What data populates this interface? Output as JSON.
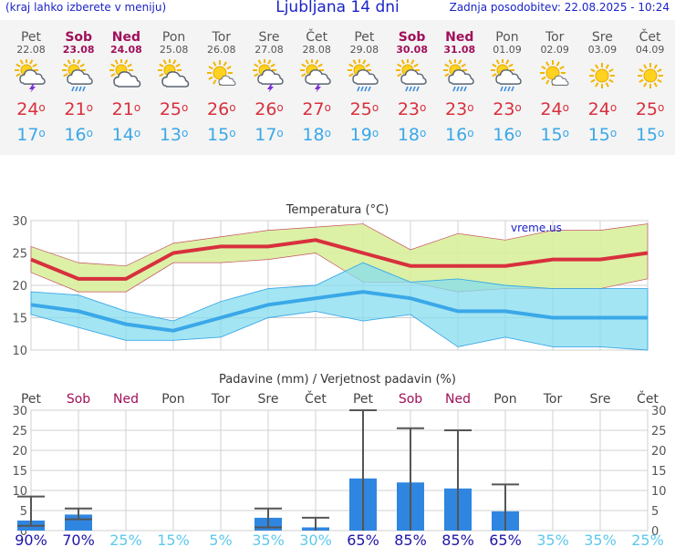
{
  "header": {
    "menu_hint": "(kraj lahko izberete v meniju)",
    "title": "Ljubljana 14 dni",
    "updated": "Zadnja posodobitev: 22.08.2025 - 10:24"
  },
  "colors": {
    "link": "#1a23c8",
    "weekend": "#a0105a",
    "tmax": "#d8303d",
    "tmin": "#3aa8e8",
    "bar": "#2f86e0"
  },
  "days": [
    {
      "name": "Pet",
      "date": "22.08",
      "weekend": false,
      "icon": "sun-cloud-storm-icon",
      "tmax": "24",
      "tmin": "17",
      "prob": "90%",
      "prob_class": "high"
    },
    {
      "name": "Sob",
      "date": "23.08",
      "weekend": true,
      "icon": "sun-cloud-rain-icon",
      "tmax": "21",
      "tmin": "16",
      "prob": "70%",
      "prob_class": "high"
    },
    {
      "name": "Ned",
      "date": "24.08",
      "weekend": true,
      "icon": "sun-cloud-icon",
      "tmax": "21",
      "tmin": "14",
      "prob": "25%",
      "prob_class": "low"
    },
    {
      "name": "Pon",
      "date": "25.08",
      "weekend": false,
      "icon": "sun-cloud-icon",
      "tmax": "25",
      "tmin": "13",
      "prob": "15%",
      "prob_class": "low"
    },
    {
      "name": "Tor",
      "date": "26.08",
      "weekend": false,
      "icon": "sun-small-cloud-icon",
      "tmax": "26",
      "tmin": "15",
      "prob": "5%",
      "prob_class": "low"
    },
    {
      "name": "Sre",
      "date": "27.08",
      "weekend": false,
      "icon": "sun-cloud-storm-icon",
      "tmax": "26",
      "tmin": "17",
      "prob": "35%",
      "prob_class": "low"
    },
    {
      "name": "Čet",
      "date": "28.08",
      "weekend": false,
      "icon": "sun-cloud-storm-icon",
      "tmax": "27",
      "tmin": "18",
      "prob": "30%",
      "prob_class": "low"
    },
    {
      "name": "Pet",
      "date": "29.08",
      "weekend": false,
      "icon": "sun-cloud-rain-icon",
      "tmax": "25",
      "tmin": "19",
      "prob": "65%",
      "prob_class": "high"
    },
    {
      "name": "Sob",
      "date": "30.08",
      "weekend": true,
      "icon": "sun-cloud-rain-icon",
      "tmax": "23",
      "tmin": "18",
      "prob": "85%",
      "prob_class": "high"
    },
    {
      "name": "Ned",
      "date": "31.08",
      "weekend": true,
      "icon": "sun-cloud-rain-icon",
      "tmax": "23",
      "tmin": "16",
      "prob": "85%",
      "prob_class": "high"
    },
    {
      "name": "Pon",
      "date": "01.09",
      "weekend": false,
      "icon": "sun-cloud-rain-icon",
      "tmax": "23",
      "tmin": "16",
      "prob": "65%",
      "prob_class": "high"
    },
    {
      "name": "Tor",
      "date": "02.09",
      "weekend": false,
      "icon": "sun-small-cloud-icon",
      "tmax": "24",
      "tmin": "15",
      "prob": "35%",
      "prob_class": "low"
    },
    {
      "name": "Sre",
      "date": "03.09",
      "weekend": false,
      "icon": "sun-icon",
      "tmax": "24",
      "tmin": "15",
      "prob": "35%",
      "prob_class": "low"
    },
    {
      "name": "Čet",
      "date": "04.09",
      "weekend": false,
      "icon": "sun-icon",
      "tmax": "25",
      "tmin": "15",
      "prob": "25%",
      "prob_class": "low"
    }
  ],
  "chart_data": [
    {
      "type": "line",
      "title": "Temperatura (°C)",
      "watermark": "vreme.us",
      "categories": [
        "22.08",
        "23.08",
        "24.08",
        "25.08",
        "26.08",
        "27.08",
        "28.08",
        "29.08",
        "30.08",
        "31.08",
        "01.09",
        "02.09",
        "03.09",
        "04.09"
      ],
      "ylim": [
        10,
        30
      ],
      "yticks": [
        10,
        15,
        20,
        25,
        30
      ],
      "grid": true,
      "series": [
        {
          "name": "tmax",
          "values": [
            24,
            21,
            21,
            25,
            26,
            26,
            27,
            25,
            23,
            23,
            23,
            24,
            24,
            25
          ],
          "band_low": [
            22,
            19,
            19,
            23.5,
            23.5,
            24,
            25,
            20.5,
            20.5,
            19,
            19.5,
            19.5,
            19.5,
            21
          ],
          "band_high": [
            26,
            23.5,
            23,
            26.5,
            27.5,
            28.5,
            29,
            29.5,
            25.5,
            28,
            27,
            28.5,
            28.5,
            29.5
          ]
        },
        {
          "name": "tmin",
          "values": [
            17,
            16,
            14,
            13,
            15,
            17,
            18,
            19,
            18,
            16,
            16,
            15,
            15,
            15
          ],
          "band_low": [
            15.5,
            13.5,
            11.5,
            11.5,
            12,
            15,
            16,
            14.5,
            15.5,
            10.5,
            12,
            10.5,
            10.5,
            10
          ],
          "band_high": [
            19,
            18.5,
            16,
            14.5,
            17.5,
            19.5,
            20,
            23.5,
            20.5,
            21,
            20,
            19.5,
            19.5,
            19.5
          ]
        }
      ]
    },
    {
      "type": "bar",
      "title": "Padavine (mm) / Verjetnost padavin (%)",
      "categories": [
        "22.08",
        "23.08",
        "24.08",
        "25.08",
        "26.08",
        "27.08",
        "28.08",
        "29.08",
        "30.08",
        "31.08",
        "01.09",
        "02.09",
        "03.09",
        "04.09"
      ],
      "ylim": [
        0,
        30
      ],
      "yticks": [
        0,
        5,
        10,
        15,
        20,
        25,
        30
      ],
      "grid": true,
      "values": [
        2.5,
        4,
        0,
        0,
        0,
        3.2,
        0.8,
        13,
        12,
        10.5,
        4.8,
        0,
        0,
        0
      ],
      "error_low": [
        1.2,
        2.8,
        0,
        0,
        0,
        0.8,
        0,
        0,
        0,
        0,
        0,
        0,
        0,
        0
      ],
      "error_high": [
        8.5,
        5.5,
        0,
        0,
        0,
        5.5,
        3.2,
        31,
        25.5,
        25,
        11.5,
        0,
        0,
        0
      ],
      "probability": [
        "90%",
        "70%",
        "25%",
        "15%",
        "5%",
        "35%",
        "30%",
        "65%",
        "85%",
        "85%",
        "65%",
        "35%",
        "35%",
        "25%"
      ]
    }
  ]
}
